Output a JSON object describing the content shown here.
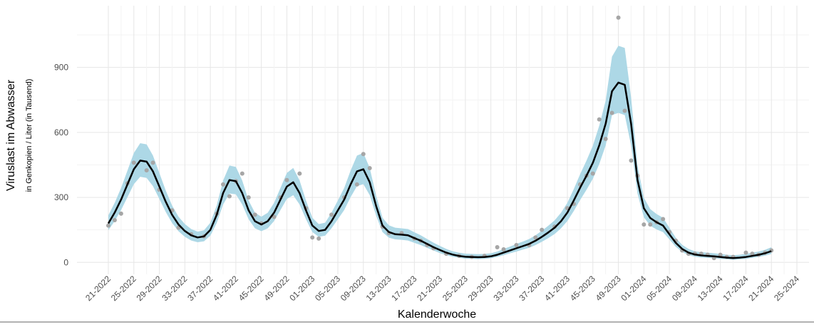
{
  "chart_data": {
    "type": "line",
    "y_label": "Viruslast im Abwasser",
    "y_sublabel": "in Genkopien / Liter (in Tausend)",
    "x_label": "Kalenderwoche",
    "categories": [
      "21-2022",
      null,
      null,
      null,
      "25-2022",
      null,
      null,
      null,
      "29-2022",
      null,
      null,
      null,
      "33-2022",
      null,
      null,
      null,
      "37-2022",
      null,
      null,
      null,
      "41-2022",
      null,
      null,
      null,
      "45-2022",
      null,
      null,
      null,
      "49-2022",
      null,
      null,
      null,
      "01-2023",
      null,
      null,
      null,
      "05-2023",
      null,
      null,
      null,
      "09-2023",
      null,
      null,
      null,
      "13-2023",
      null,
      null,
      null,
      "17-2023",
      null,
      null,
      null,
      "21-2023",
      null,
      null,
      null,
      "25-2023",
      null,
      null,
      null,
      "29-2023",
      null,
      null,
      null,
      "33-2023",
      null,
      null,
      null,
      "37-2023",
      null,
      null,
      null,
      "41-2023",
      null,
      null,
      null,
      "45-2023",
      null,
      null,
      null,
      "49-2023",
      null,
      null,
      null,
      "01-2024",
      null,
      null,
      null,
      "05-2024",
      null,
      null,
      null,
      "09-2024",
      null,
      null,
      null,
      "13-2024",
      null,
      null,
      null,
      "17-2024",
      null,
      null,
      null,
      "21-2024",
      null,
      null,
      null,
      "25-2024"
    ],
    "band": {
      "color": "#add8e6",
      "upper": [
        217,
        275,
        344,
        424,
        505,
        550,
        545,
        493,
        413,
        332,
        263,
        211,
        177,
        154,
        142,
        148,
        183,
        263,
        378,
        447,
        441,
        378,
        286,
        229,
        211,
        229,
        275,
        344,
        413,
        436,
        378,
        286,
        206,
        177,
        183,
        229,
        286,
        344,
        424,
        493,
        505,
        436,
        309,
        206,
        171,
        160,
        157,
        154,
        139,
        125,
        108,
        91,
        76,
        62,
        51,
        45,
        40,
        39,
        38,
        39,
        42,
        50,
        62,
        73,
        85,
        96,
        108,
        125,
        146,
        169,
        194,
        229,
        275,
        338,
        407,
        470,
        539,
        631,
        746,
        950,
        1000,
        990,
        760,
        447,
        298,
        246,
        223,
        206,
        160,
        114,
        81,
        62,
        51,
        47,
        45,
        42,
        39,
        35,
        33,
        35,
        39,
        45,
        50,
        58,
        70,
        null,
        null,
        null,
        null
      ],
      "lower": [
        148,
        191,
        242,
        301,
        361,
        395,
        390,
        352,
        293,
        233,
        182,
        144,
        118,
        101,
        93,
        97,
        123,
        182,
        267,
        318,
        314,
        267,
        199,
        157,
        144,
        157,
        191,
        242,
        293,
        310,
        267,
        199,
        140,
        118,
        123,
        157,
        199,
        242,
        301,
        352,
        361,
        310,
        216,
        140,
        114,
        106,
        104,
        101,
        90,
        80,
        67,
        55,
        43,
        33,
        26,
        21,
        17,
        16,
        15,
        16,
        19,
        25,
        33,
        42,
        50,
        59,
        67,
        80,
        95,
        112,
        131,
        157,
        191,
        237,
        288,
        335,
        386,
        454,
        539,
        680,
        690,
        680,
        540,
        318,
        208,
        169,
        152,
        140,
        106,
        72,
        48,
        33,
        26,
        22,
        21,
        19,
        16,
        14,
        12,
        14,
        16,
        21,
        25,
        31,
        39,
        null,
        null,
        null,
        null
      ]
    },
    "series": [
      {
        "type": "scatter",
        "color": "#a6a6a6",
        "values": [
          170,
          195,
          225,
          365,
          460,
          null,
          425,
          460,
          335,
          null,
          240,
          160,
          null,
          130,
          null,
          120,
          null,
          225,
          360,
          305,
          375,
          410,
          300,
          220,
          180,
          null,
          210,
          300,
          380,
          null,
          410,
          250,
          115,
          110,
          null,
          220,
          null,
          300,
          null,
          360,
          500,
          435,
          null,
          165,
          135,
          null,
          135,
          null,
          110,
          100,
          80,
          65,
          null,
          40,
          null,
          30,
          null,
          25,
          null,
          30,
          null,
          70,
          60,
          null,
          80,
          null,
          80,
          115,
          150,
          null,
          165,
          null,
          250,
          270,
          360,
          400,
          410,
          660,
          570,
          690,
          1130,
          700,
          470,
          400,
          175,
          175,
          185,
          200,
          140,
          100,
          55,
          40,
          40,
          40,
          35,
          20,
          35,
          25,
          25,
          null,
          45,
          40,
          35,
          45,
          55,
          null,
          null,
          null,
          null
        ]
      },
      {
        "type": "line",
        "color": "#000000",
        "values": [
          180,
          230,
          290,
          360,
          430,
          470,
          465,
          420,
          350,
          280,
          220,
          175,
          145,
          125,
          115,
          120,
          150,
          220,
          320,
          380,
          375,
          320,
          240,
          190,
          175,
          190,
          230,
          290,
          350,
          370,
          320,
          240,
          170,
          145,
          150,
          190,
          240,
          290,
          360,
          420,
          430,
          370,
          260,
          170,
          140,
          130,
          128,
          125,
          112,
          100,
          85,
          70,
          57,
          45,
          36,
          30,
          26,
          25,
          24,
          25,
          28,
          35,
          45,
          55,
          65,
          75,
          85,
          100,
          118,
          138,
          160,
          190,
          230,
          285,
          345,
          400,
          460,
          540,
          640,
          790,
          830,
          820,
          640,
          380,
          250,
          205,
          185,
          170,
          130,
          90,
          62,
          45,
          36,
          32,
          30,
          28,
          25,
          22,
          20,
          22,
          25,
          30,
          35,
          42,
          52,
          null,
          null,
          null,
          null
        ]
      }
    ],
    "ylim": [
      -55,
      1185
    ],
    "yticks": [
      0,
      300,
      600,
      900
    ],
    "grid": true
  }
}
